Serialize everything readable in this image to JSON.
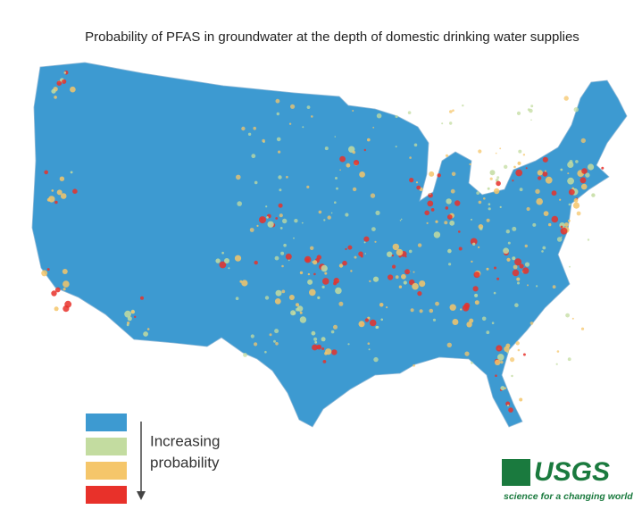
{
  "header": {
    "title": "Probability of PFAS in groundwater at the depth of domestic drinking water supplies"
  },
  "legend": {
    "colors": [
      "#3d9ad1",
      "#c3dca0",
      "#f5c66a",
      "#e8312a"
    ],
    "label_lines": [
      "Increasing",
      "probability"
    ]
  },
  "logo": {
    "name": "USGS",
    "tagline": "science for a changing world",
    "color": "#1a7a3e"
  }
}
